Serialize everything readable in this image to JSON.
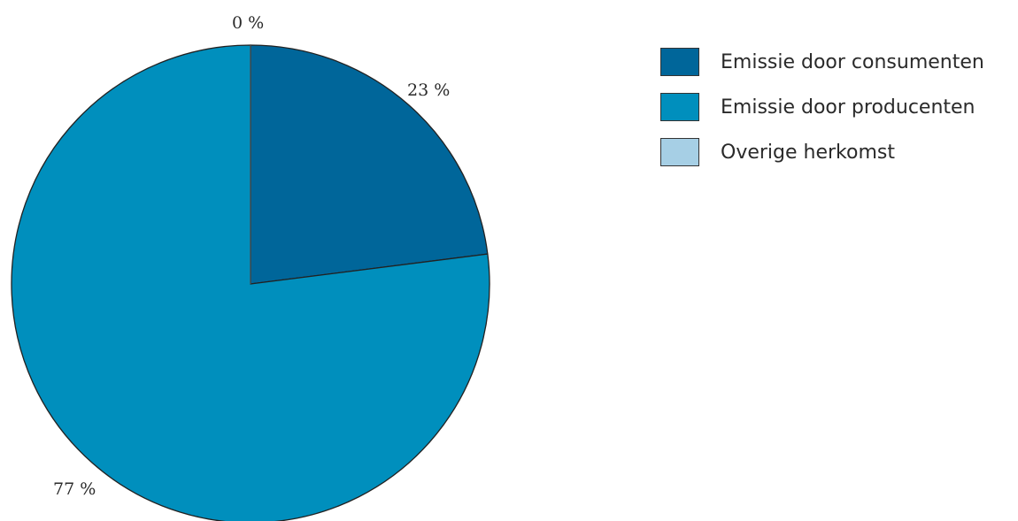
{
  "chart_data": {
    "type": "pie",
    "categories": [
      "Emissie door consumenten",
      "Emissie door producenten",
      "Overige herkomst"
    ],
    "values": [
      23,
      77,
      0
    ],
    "value_labels": [
      "23 %",
      "77 %",
      "0 %"
    ],
    "colors": [
      "#00669a",
      "#008fbd",
      "#a6cfe5"
    ],
    "legend": "top-right"
  }
}
